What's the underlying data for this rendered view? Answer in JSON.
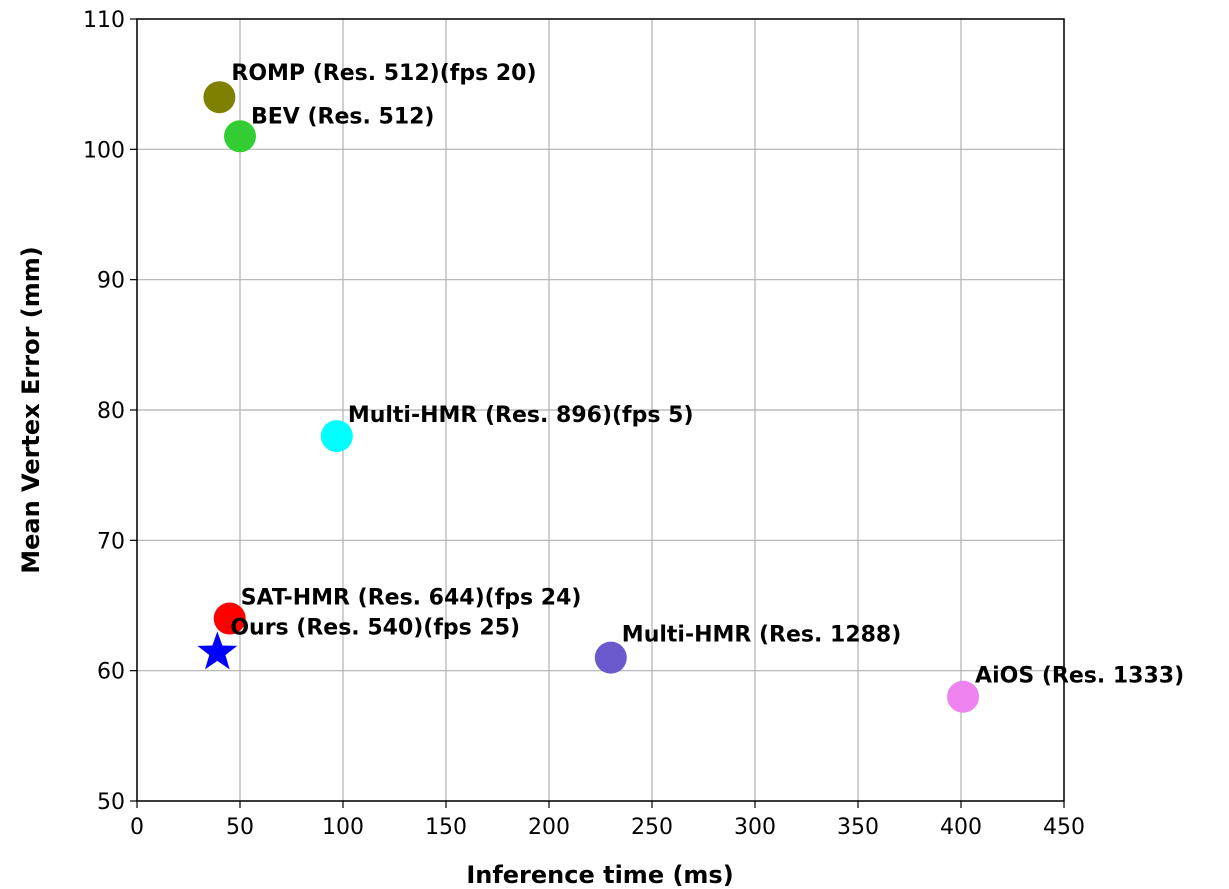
{
  "chart_data": {
    "type": "scatter",
    "xlabel": "Inference time (ms)",
    "ylabel": "Mean Vertex Error (mm)",
    "xlim": [
      0,
      450
    ],
    "ylim": [
      50,
      110
    ],
    "xticks": [
      0,
      50,
      100,
      150,
      200,
      250,
      300,
      350,
      400,
      450
    ],
    "yticks": [
      50,
      60,
      70,
      80,
      90,
      100,
      110
    ],
    "grid": true,
    "points": [
      {
        "label": "ROMP (Res. 512)(fps 20)",
        "x": 40,
        "y": 104,
        "color": "#808000",
        "marker": "circle"
      },
      {
        "label": "BEV (Res. 512)",
        "x": 50,
        "y": 101,
        "color": "#32cd32",
        "marker": "circle"
      },
      {
        "label": "Multi-HMR (Res. 896)(fps 5)",
        "x": 97,
        "y": 78,
        "color": "#00ffff",
        "marker": "circle"
      },
      {
        "label": "SAT-HMR (Res. 644)(fps 24)",
        "x": 45,
        "y": 64,
        "color": "#ff0000",
        "marker": "circle"
      },
      {
        "label": "Ours (Res. 540)(fps 25)",
        "x": 39,
        "y": 61.4,
        "color": "#0000ff",
        "marker": "star"
      },
      {
        "label": "Multi-HMR (Res. 1288)",
        "x": 230,
        "y": 61,
        "color": "#6a5acd",
        "marker": "circle"
      },
      {
        "label": "AiOS (Res. 1333)",
        "x": 401,
        "y": 58,
        "color": "#ee82ee",
        "marker": "circle"
      }
    ]
  }
}
